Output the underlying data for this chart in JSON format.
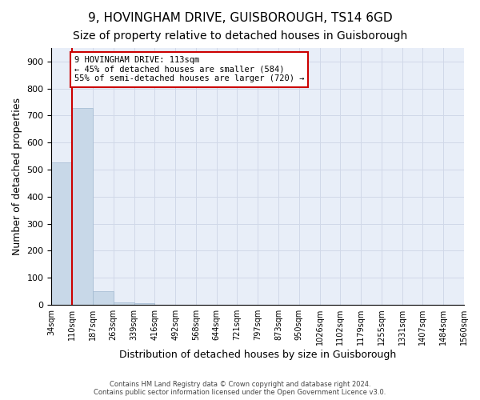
{
  "title_line1": "9, HOVINGHAM DRIVE, GUISBOROUGH, TS14 6GD",
  "title_line2": "Size of property relative to detached houses in Guisborough",
  "xlabel": "Distribution of detached houses by size in Guisborough",
  "ylabel": "Number of detached properties",
  "bar_values": [
    527,
    727,
    50,
    10,
    7,
    0,
    0,
    0,
    0,
    0,
    0,
    0,
    0,
    0,
    0,
    0,
    0,
    0,
    0,
    0
  ],
  "categories": [
    "34sqm",
    "110sqm",
    "187sqm",
    "263sqm",
    "339sqm",
    "416sqm",
    "492sqm",
    "568sqm",
    "644sqm",
    "721sqm",
    "797sqm",
    "873sqm",
    "950sqm",
    "1026sqm",
    "1102sqm",
    "1179sqm",
    "1255sqm",
    "1331sqm",
    "1407sqm",
    "1484sqm",
    "1560sqm"
  ],
  "bar_color": "#c8d8e8",
  "bar_edge_color": "#a0b8d0",
  "marker_color": "#cc0000",
  "annotation_text": "9 HOVINGHAM DRIVE: 113sqm\n← 45% of detached houses are smaller (584)\n55% of semi-detached houses are larger (720) →",
  "annotation_box_color": "#ffffff",
  "annotation_box_edge": "#cc0000",
  "ylim": [
    0,
    950
  ],
  "yticks": [
    0,
    100,
    200,
    300,
    400,
    500,
    600,
    700,
    800,
    900
  ],
  "grid_color": "#d0d8e8",
  "background_color": "#e8eef8",
  "footnote": "Contains HM Land Registry data © Crown copyright and database right 2024.\nContains public sector information licensed under the Open Government Licence v3.0.",
  "title_fontsize": 11,
  "subtitle_fontsize": 10,
  "axis_fontsize": 9,
  "tick_fontsize": 7
}
